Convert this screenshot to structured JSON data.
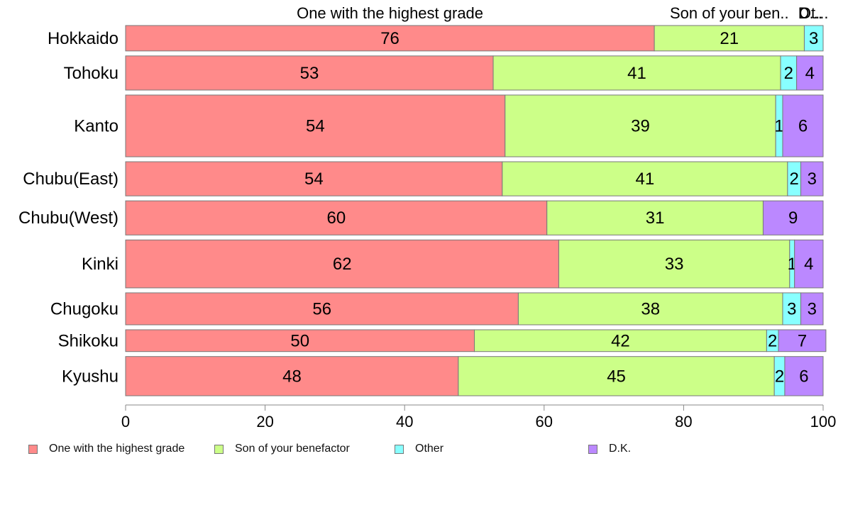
{
  "chart_data": {
    "type": "bar",
    "orientation": "horizontal",
    "stacked": true,
    "categories": [
      "Hokkaido",
      "Tohoku",
      "Kanto",
      "Chubu(East)",
      "Chubu(West)",
      "Kinki",
      "Chugoku",
      "Shikoku",
      "Kyushu"
    ],
    "series": [
      {
        "name": "One with the highest grade",
        "color": "#ff8a8a",
        "values": [
          75.8,
          52.7,
          54.4,
          54.0,
          60.4,
          62.1,
          56.3,
          50.0,
          47.7
        ],
        "labels": [
          "76",
          "53",
          "54",
          "54",
          "60",
          "62",
          "56",
          "50",
          "48"
        ]
      },
      {
        "name": "Son of your benefactor",
        "color": "#ccff88",
        "values": [
          21.5,
          41.2,
          38.8,
          40.9,
          31.0,
          33.1,
          37.9,
          41.9,
          45.3
        ],
        "labels": [
          "21",
          "41",
          "39",
          "41",
          "31",
          "33",
          "38",
          "42",
          "45"
        ]
      },
      {
        "name": "Other",
        "color": "#88ffff",
        "values": [
          2.7,
          2.3,
          1.0,
          1.9,
          0,
          0.7,
          2.6,
          1.7,
          1.5
        ],
        "labels": [
          "3",
          "2",
          "1",
          "2",
          "",
          "1",
          "3",
          "2",
          "2"
        ]
      },
      {
        "name": "D.K.",
        "color": "#bb88ff",
        "values": [
          0,
          3.8,
          5.8,
          3.2,
          8.6,
          4.1,
          3.2,
          6.8,
          5.5
        ],
        "labels": [
          "",
          "4",
          "6",
          "3",
          "9",
          "4",
          "3",
          "7",
          "6"
        ]
      }
    ],
    "bar_weights": [
      35,
      47,
      85,
      47,
      47,
      66,
      44,
      30,
      54
    ],
    "top_labels": [
      "One with the highest grade",
      "Son of your ben..",
      "Ot...",
      "D..."
    ],
    "xlim": [
      0,
      100
    ],
    "xticks": [
      "0",
      "20",
      "40",
      "60",
      "80",
      "100"
    ],
    "grid": false,
    "legend_position": "bottom"
  }
}
